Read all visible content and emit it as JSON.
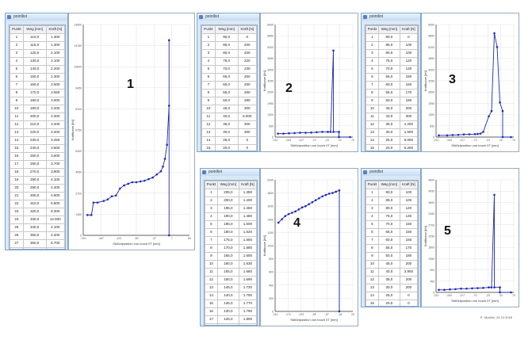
{
  "windows": [
    {
      "title": "pointlist",
      "number": "1"
    },
    {
      "title": "pointlist",
      "number": "2"
    },
    {
      "title": "pointlist",
      "number": "3"
    },
    {
      "title": "pointlist",
      "number": "4"
    },
    {
      "title": "pointlist",
      "number": "5"
    }
  ],
  "table_headers": [
    "Punkt",
    "Weg [mm]",
    "Kraft [N]"
  ],
  "footer": "E. Mueller, 24.10.2018",
  "chart_data": [
    {
      "type": "line",
      "xlabel": "Stößelposition von touch 0T [mm]",
      "ylabel": "Kraftkurve [kN]",
      "x": [
        -200,
        -190,
        -185,
        -175,
        -160,
        -150,
        -140,
        -130,
        -120,
        -110,
        -100,
        -90,
        -80,
        -70,
        -60,
        -50,
        -40,
        -30,
        -20,
        -15,
        -10,
        -5,
        0,
        0,
        0
      ],
      "y": [
        1300,
        1300,
        2100,
        2100,
        2200,
        2300,
        2500,
        2550,
        3000,
        3200,
        3300,
        3400,
        3400,
        3450,
        3500,
        3600,
        3700,
        3900,
        4100,
        4400,
        4900,
        5800,
        8300,
        12500,
        0
      ],
      "xlim": [
        -210,
        50
      ],
      "ylim": [
        0,
        13500
      ]
    },
    {
      "type": "line",
      "xlabel": "Stößelposition von touch 0T [mm]",
      "ylabel": "Kraftkurve [kN]",
      "x": [
        -200,
        -180,
        -160,
        -140,
        -120,
        -100,
        -80,
        -60,
        -40,
        -20,
        -10,
        0,
        0,
        20,
        20,
        60
      ],
      "y": [
        200,
        200,
        220,
        230,
        250,
        250,
        260,
        280,
        300,
        300,
        300,
        5000,
        300,
        300,
        0,
        0
      ],
      "xlim": [
        -210,
        70
      ],
      "ylim": [
        0,
        6500
      ]
    },
    {
      "type": "line",
      "xlabel": "Stößelposition von touch 0T [mm]",
      "ylabel": "Kraftkurve [kN]",
      "x": [
        -200,
        -170,
        -150,
        -130,
        -110,
        -90,
        -70,
        -60,
        -50,
        -40,
        -20,
        -10,
        0,
        10,
        20,
        30,
        30,
        60
      ],
      "y": [
        100,
        100,
        120,
        130,
        150,
        160,
        170,
        180,
        200,
        300,
        1200,
        1500,
        6000,
        5200,
        2000,
        1500,
        0,
        0
      ],
      "xlim": [
        -210,
        70
      ],
      "ylim": [
        0,
        6500
      ]
    },
    {
      "type": "line",
      "xlabel": "Stößelposition von touch 0T [mm]",
      "ylabel": "Kraftkurve [kN]",
      "x": [
        -200,
        -190,
        -180,
        -170,
        -160,
        -150,
        -140,
        -130,
        -120,
        -110,
        -100,
        -90,
        -80,
        -70,
        -60,
        -50,
        -40,
        -30,
        -20,
        -20
      ],
      "y": [
        1350,
        1400,
        1450,
        1480,
        1500,
        1520,
        1550,
        1580,
        1600,
        1630,
        1660,
        1690,
        1720,
        1750,
        1770,
        1790,
        1800,
        1820,
        1840,
        0
      ],
      "xlim": [
        -210,
        20
      ],
      "ylim": [
        0,
        2000
      ]
    },
    {
      "type": "line",
      "xlabel": "Stößelposition von touch 0T [mm]",
      "ylabel": "Kraftkurve [kN]",
      "x": [
        -200,
        -180,
        -160,
        -140,
        -120,
        -100,
        -80,
        -60,
        -40,
        -20,
        -10,
        0,
        0,
        20,
        20,
        60
      ],
      "y": [
        100,
        100,
        120,
        130,
        150,
        150,
        160,
        170,
        180,
        200,
        200,
        3900,
        200,
        200,
        0,
        0
      ],
      "xlim": [
        -210,
        70
      ],
      "ylim": [
        0,
        4500
      ]
    }
  ],
  "tables": [
    {
      "rows": [
        [
          "1",
          "110,0",
          "1.300"
        ],
        [
          "2",
          "115,0",
          "1.300"
        ],
        [
          "3",
          "120,0",
          "2.100"
        ],
        [
          "4",
          "130,0",
          "2.100"
        ],
        [
          "5",
          "140,0",
          "2.200"
        ],
        [
          "6",
          "150,0",
          "2.300"
        ],
        [
          "7",
          "160,0",
          "2.500"
        ],
        [
          "8",
          "170,0",
          "2.550"
        ],
        [
          "9",
          "180,0",
          "3.000"
        ],
        [
          "10",
          "190,0",
          "3.200"
        ],
        [
          "11",
          "200,0",
          "3.300"
        ],
        [
          "12",
          "210,0",
          "3.400"
        ],
        [
          "13",
          "220,0",
          "3.400"
        ],
        [
          "14",
          "230,0",
          "3.450"
        ],
        [
          "15",
          "240,0",
          "3.500"
        ],
        [
          "16",
          "250,0",
          "3.600"
        ],
        [
          "17",
          "260,0",
          "3.700"
        ],
        [
          "18",
          "270,0",
          "3.900"
        ],
        [
          "19",
          "280,0",
          "4.100"
        ],
        [
          "20",
          "290,0",
          "4.400"
        ],
        [
          "21",
          "300,0",
          "4.900"
        ],
        [
          "22",
          "310,0",
          "5.800"
        ],
        [
          "23",
          "320,0",
          "8.300"
        ],
        [
          "24",
          "330,0",
          "12.500"
        ],
        [
          "25",
          "340,0",
          "4.100"
        ],
        [
          "26",
          "350,0",
          "4.400"
        ],
        [
          "27",
          "360,0",
          "6.700"
        ],
        [
          "28",
          "370,0",
          "8.700"
        ],
        [
          "29",
          "380,0",
          "12.500"
        ],
        [
          "30",
          "390,0",
          "0"
        ]
      ],
      "footer_row": [
        "31",
        "110,0",
        "0"
      ]
    },
    {
      "rows": [
        [
          "1",
          "90,0",
          "0"
        ],
        [
          "2",
          "85,0",
          "200"
        ],
        [
          "3",
          "80,0",
          "200"
        ],
        [
          "4",
          "75,0",
          "220"
        ],
        [
          "5",
          "70,0",
          "230"
        ],
        [
          "6",
          "65,0",
          "250"
        ],
        [
          "7",
          "60,0",
          "250"
        ],
        [
          "8",
          "55,0",
          "260"
        ],
        [
          "9",
          "50,0",
          "280"
        ],
        [
          "10",
          "45,0",
          "300"
        ],
        [
          "11",
          "40,0",
          "5.000"
        ],
        [
          "12",
          "35,0",
          "300"
        ],
        [
          "13",
          "30,0",
          "300"
        ],
        [
          "14",
          "25,0",
          "0"
        ],
        [
          "15",
          "20,0",
          "0"
        ],
        [
          "16",
          "10,0",
          "0"
        ]
      ],
      "footer_row": [
        "17",
        "40,0",
        "0"
      ]
    },
    {
      "rows": [
        [
          "1",
          "90,0",
          "0"
        ],
        [
          "2",
          "85,0",
          "100"
        ],
        [
          "3",
          "80,0",
          "100"
        ],
        [
          "4",
          "75,0",
          "120"
        ],
        [
          "5",
          "70,0",
          "130"
        ],
        [
          "6",
          "65,0",
          "150"
        ],
        [
          "7",
          "60,0",
          "160"
        ],
        [
          "8",
          "55,0",
          "170"
        ],
        [
          "9",
          "50,0",
          "180"
        ],
        [
          "10",
          "45,0",
          "200"
        ],
        [
          "11",
          "40,0",
          "300"
        ],
        [
          "12",
          "35,0",
          "1.200"
        ],
        [
          "13",
          "30,0",
          "1.500"
        ],
        [
          "14",
          "25,0",
          "6.000"
        ],
        [
          "15",
          "20,0",
          "5.200"
        ],
        [
          "16",
          "15,0",
          "2.000"
        ],
        [
          "17",
          "10,0",
          "1.500"
        ],
        [
          "18",
          "5,0",
          "0"
        ]
      ],
      "footer_row": [
        "19",
        "40,0",
        "0"
      ]
    },
    {
      "rows": [
        [
          "1",
          "205,0",
          "1.350"
        ],
        [
          "2",
          "200,0",
          "1.400"
        ],
        [
          "3",
          "195,0",
          "1.450"
        ],
        [
          "4",
          "190,0",
          "1.480"
        ],
        [
          "5",
          "185,0",
          "1.500"
        ],
        [
          "6",
          "180,0",
          "1.520"
        ],
        [
          "7",
          "175,0",
          "1.550"
        ],
        [
          "8",
          "170,0",
          "1.580"
        ],
        [
          "9",
          "165,0",
          "1.600"
        ],
        [
          "10",
          "160,0",
          "1.630"
        ],
        [
          "11",
          "155,0",
          "1.660"
        ],
        [
          "12",
          "150,0",
          "1.690"
        ],
        [
          "13",
          "145,0",
          "1.720"
        ],
        [
          "14",
          "140,0",
          "1.750"
        ],
        [
          "15",
          "135,0",
          "1.770"
        ],
        [
          "16",
          "130,0",
          "1.790"
        ],
        [
          "17",
          "125,0",
          "1.800"
        ],
        [
          "18",
          "120,0",
          "1.820"
        ],
        [
          "19",
          "115,0",
          "1.840"
        ]
      ],
      "footer_row": [
        "20",
        "50,0",
        "0"
      ]
    },
    {
      "rows": [
        [
          "1",
          "90,0",
          "100"
        ],
        [
          "2",
          "85,0",
          "100"
        ],
        [
          "3",
          "80,0",
          "120"
        ],
        [
          "4",
          "75,0",
          "130"
        ],
        [
          "5",
          "70,0",
          "150"
        ],
        [
          "6",
          "65,0",
          "150"
        ],
        [
          "7",
          "60,0",
          "160"
        ],
        [
          "8",
          "55,0",
          "170"
        ],
        [
          "9",
          "50,0",
          "180"
        ],
        [
          "10",
          "45,0",
          "200"
        ],
        [
          "11",
          "40,0",
          "3.900"
        ],
        [
          "12",
          "35,0",
          "200"
        ],
        [
          "13",
          "30,0",
          "200"
        ],
        [
          "14",
          "25,0",
          "0"
        ],
        [
          "15",
          "20,0",
          "0"
        ],
        [
          "16",
          "10,0",
          "0"
        ]
      ],
      "footer_row": [
        "17",
        "40,0",
        "0"
      ]
    }
  ]
}
